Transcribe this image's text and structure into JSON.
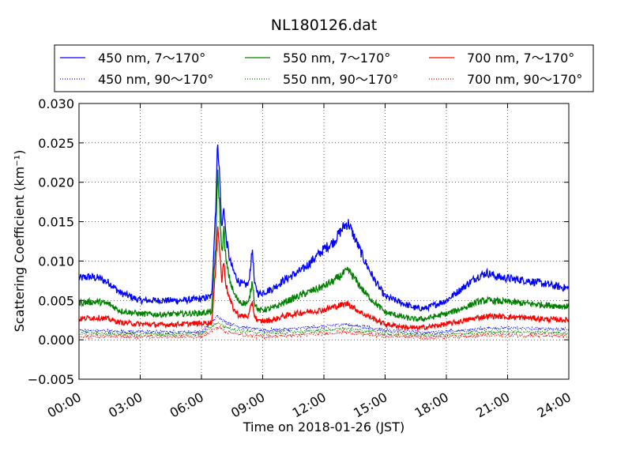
{
  "chart_data": {
    "type": "line",
    "title": "NL180126.dat",
    "xlabel": "Time on 2018-01-26 (JST)",
    "ylabel": "Scattering Coefficient (km⁻¹)",
    "xlim": [
      0,
      24
    ],
    "ylim": [
      -0.005,
      0.03
    ],
    "x_tick_labels": [
      "00:00",
      "03:00",
      "06:00",
      "09:00",
      "12:00",
      "15:00",
      "18:00",
      "21:00",
      "24:00"
    ],
    "y_tick_labels": [
      "−0.005",
      "0.000",
      "0.005",
      "0.010",
      "0.015",
      "0.020",
      "0.025",
      "0.030"
    ],
    "grid": true,
    "legend_placement": "top, above plot",
    "series": [
      {
        "name": "450 nm, 7～170°",
        "color": "#0000ff",
        "style": "solid",
        "x": [
          0,
          0.5,
          1,
          1.5,
          2,
          3,
          4,
          5,
          6,
          6.5,
          6.7,
          6.8,
          6.9,
          7.0,
          7.1,
          7.2,
          7.4,
          7.6,
          7.8,
          8.0,
          8.3,
          8.5,
          8.6,
          8.8,
          9,
          9.5,
          10,
          11,
          12,
          12.5,
          13,
          13.2,
          13.5,
          14,
          14.5,
          15,
          16,
          16.5,
          17,
          18,
          19,
          19.5,
          20,
          20.5,
          21,
          22,
          23,
          24
        ],
        "y": [
          0.0078,
          0.008,
          0.0078,
          0.0072,
          0.006,
          0.005,
          0.005,
          0.005,
          0.0052,
          0.0055,
          0.017,
          0.0255,
          0.02,
          0.014,
          0.017,
          0.013,
          0.01,
          0.0085,
          0.0075,
          0.007,
          0.007,
          0.0115,
          0.007,
          0.0058,
          0.006,
          0.0065,
          0.0075,
          0.009,
          0.0115,
          0.0125,
          0.0145,
          0.0148,
          0.013,
          0.01,
          0.0075,
          0.0055,
          0.0045,
          0.004,
          0.004,
          0.005,
          0.007,
          0.008,
          0.0085,
          0.008,
          0.0078,
          0.0075,
          0.007,
          0.0065
        ]
      },
      {
        "name": "450 nm, 90～170°",
        "color": "#0000ff",
        "style": "dotted",
        "x": [
          0,
          3,
          6,
          6.8,
          7.2,
          8,
          9,
          10,
          12,
          13,
          14,
          15,
          17,
          19,
          20,
          21,
          24
        ],
        "y": [
          0.0012,
          0.001,
          0.001,
          0.003,
          0.0022,
          0.0016,
          0.0012,
          0.0013,
          0.0017,
          0.002,
          0.0016,
          0.0012,
          0.0009,
          0.0012,
          0.0015,
          0.0015,
          0.0013
        ]
      },
      {
        "name": "550 nm, 7～170°",
        "color": "#008000",
        "style": "solid",
        "x": [
          0,
          0.5,
          1,
          1.5,
          2,
          3,
          4,
          5,
          6,
          6.5,
          6.7,
          6.8,
          6.9,
          7.0,
          7.1,
          7.2,
          7.4,
          7.6,
          7.8,
          8.0,
          8.3,
          8.5,
          8.6,
          8.8,
          9,
          9.5,
          10,
          11,
          12,
          12.5,
          13,
          13.2,
          13.5,
          14,
          14.5,
          15,
          16,
          16.5,
          17,
          18,
          19,
          19.5,
          20,
          20.5,
          21,
          22,
          23,
          24
        ],
        "y": [
          0.0047,
          0.0048,
          0.0048,
          0.0045,
          0.0037,
          0.0033,
          0.0032,
          0.0033,
          0.0034,
          0.0036,
          0.012,
          0.0215,
          0.016,
          0.011,
          0.014,
          0.01,
          0.0075,
          0.0058,
          0.005,
          0.0047,
          0.0046,
          0.0075,
          0.0047,
          0.0037,
          0.0038,
          0.004,
          0.0047,
          0.0058,
          0.0068,
          0.0075,
          0.0085,
          0.0088,
          0.0078,
          0.006,
          0.0047,
          0.0035,
          0.0028,
          0.0026,
          0.0027,
          0.0033,
          0.0042,
          0.0048,
          0.005,
          0.0049,
          0.0048,
          0.0046,
          0.0044,
          0.0042
        ]
      },
      {
        "name": "550 nm, 90～170°",
        "color": "#008000",
        "style": "dotted",
        "x": [
          0,
          3,
          6,
          6.8,
          7.2,
          8,
          9,
          10,
          12,
          13,
          14,
          15,
          17,
          19,
          20,
          21,
          24
        ],
        "y": [
          0.0008,
          0.0007,
          0.0007,
          0.0022,
          0.0016,
          0.0011,
          0.0008,
          0.0009,
          0.0012,
          0.0014,
          0.0011,
          0.0008,
          0.0006,
          0.0008,
          0.001,
          0.001,
          0.0009
        ]
      },
      {
        "name": "700 nm, 7～170°",
        "color": "#ff0000",
        "style": "solid",
        "x": [
          0,
          0.5,
          1,
          1.5,
          2,
          3,
          4,
          5,
          6,
          6.5,
          6.7,
          6.8,
          6.9,
          7.0,
          7.1,
          7.2,
          7.4,
          7.6,
          7.8,
          8.0,
          8.3,
          8.5,
          8.6,
          8.8,
          9,
          9.5,
          10,
          11,
          12,
          12.5,
          13,
          13.2,
          13.5,
          14,
          14.5,
          15,
          16,
          16.5,
          17,
          18,
          19,
          19.5,
          20,
          20.5,
          21,
          22,
          23,
          24
        ],
        "y": [
          0.0026,
          0.0028,
          0.0028,
          0.0026,
          0.0022,
          0.002,
          0.0019,
          0.002,
          0.0021,
          0.0022,
          0.009,
          0.015,
          0.011,
          0.0075,
          0.01,
          0.007,
          0.005,
          0.0038,
          0.0032,
          0.003,
          0.003,
          0.0048,
          0.003,
          0.0023,
          0.0024,
          0.0025,
          0.003,
          0.0035,
          0.0038,
          0.0042,
          0.0045,
          0.0046,
          0.004,
          0.0032,
          0.0026,
          0.002,
          0.0016,
          0.0015,
          0.0016,
          0.002,
          0.0025,
          0.0028,
          0.003,
          0.003,
          0.0029,
          0.0028,
          0.0026,
          0.0025
        ]
      },
      {
        "name": "700 nm, 90～170°",
        "color": "#ff0000",
        "style": "dotted",
        "x": [
          0,
          3,
          6,
          6.8,
          7.2,
          8,
          9,
          10,
          12,
          13,
          14,
          15,
          17,
          19,
          20,
          21,
          24
        ],
        "y": [
          0.0004,
          0.0004,
          0.0004,
          0.0016,
          0.0011,
          0.0006,
          0.0004,
          0.0005,
          0.0008,
          0.001,
          0.0007,
          0.0005,
          0.0003,
          0.0005,
          0.0006,
          0.0006,
          0.0005
        ]
      }
    ]
  }
}
